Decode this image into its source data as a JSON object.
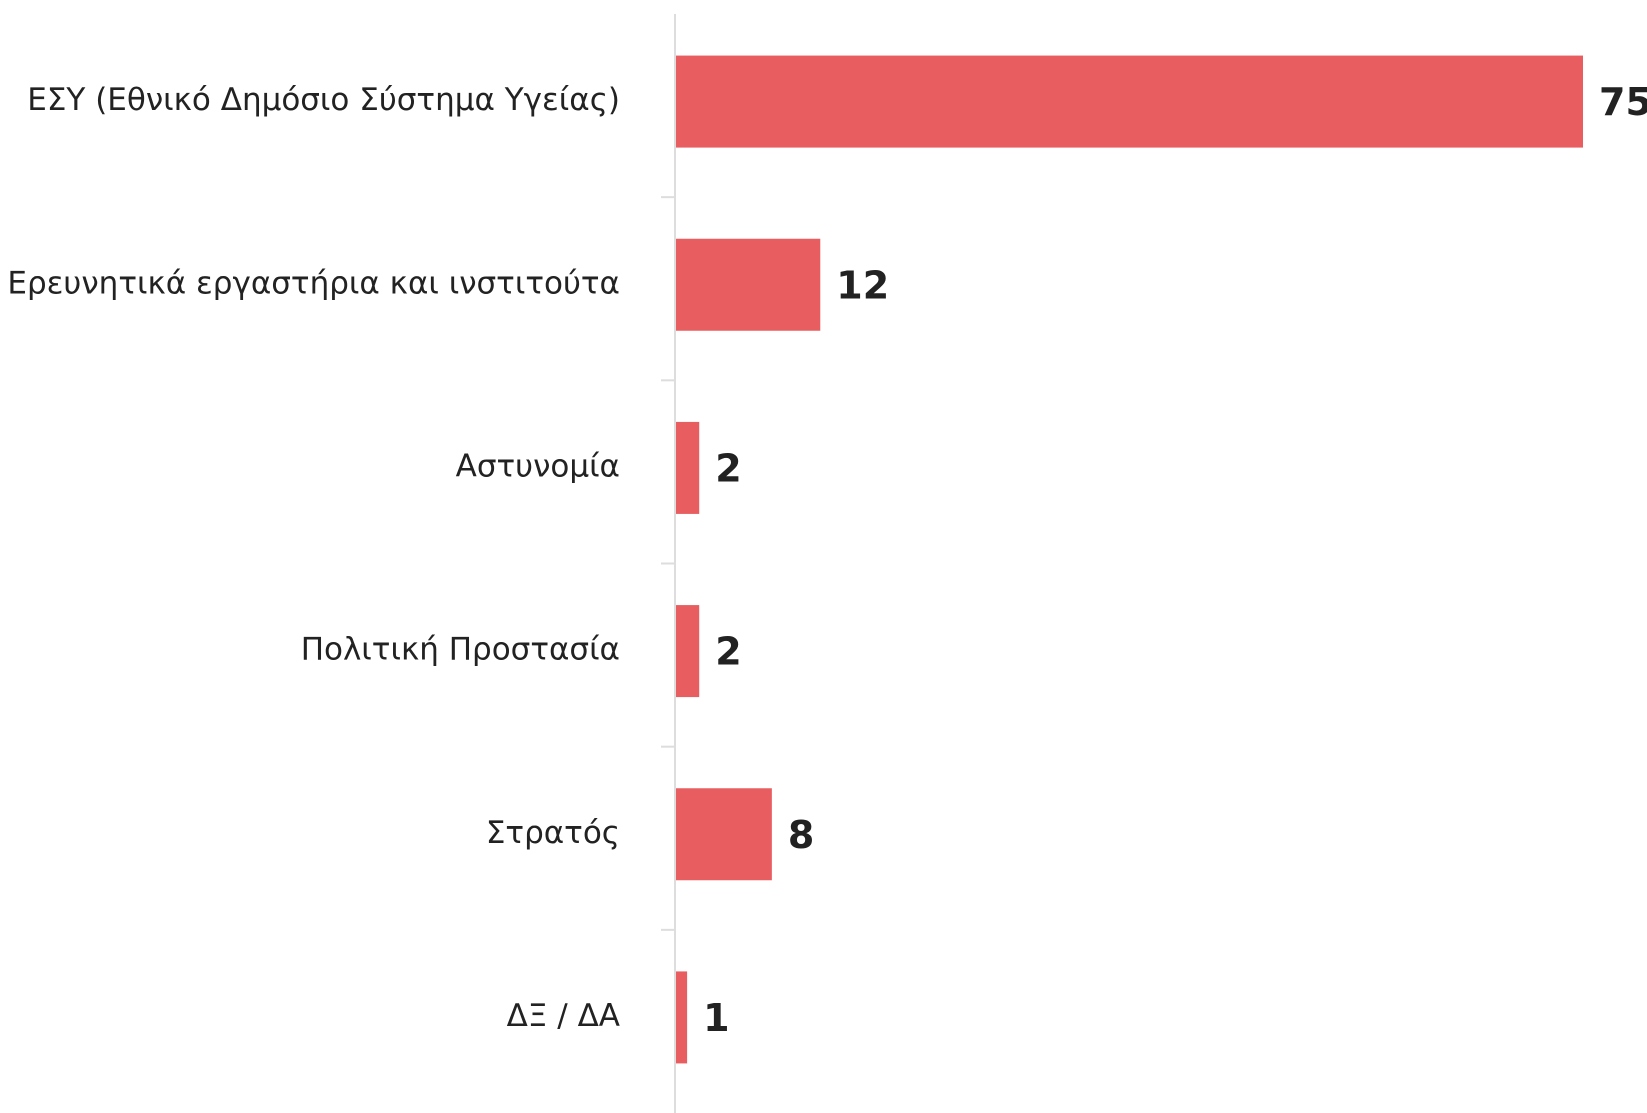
{
  "chart_data": {
    "type": "bar",
    "orientation": "horizontal",
    "categories": [
      "ΕΣΥ (Εθνικό Δημόσιο Σύστημα Υγείας)",
      "Ερευνητικά εργαστήρια και ινστιτούτα",
      "Αστυνομία",
      "Πολιτική Προστασία",
      "Στρατός",
      "ΔΞ / ΔΑ"
    ],
    "values": [
      75,
      12,
      2,
      2,
      8,
      1
    ],
    "color": "#e85d5f"
  }
}
